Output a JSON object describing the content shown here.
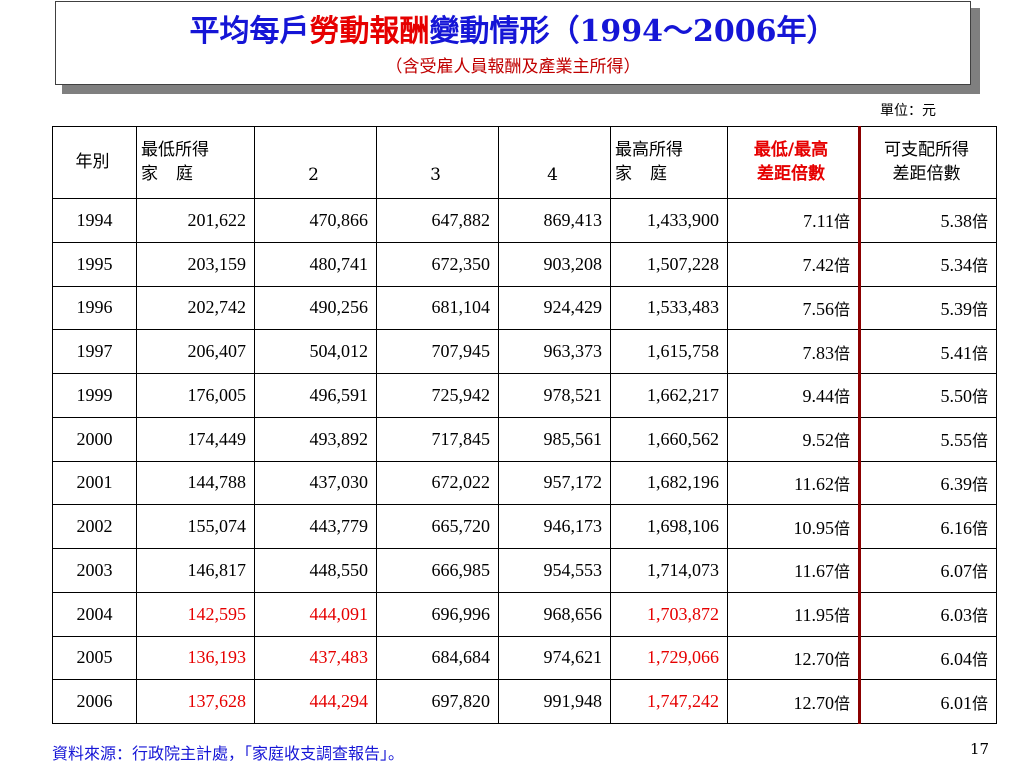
{
  "title": {
    "part1": "平均每戶",
    "accent": "勞動報酬",
    "part2": "變動情形（1994～2006年）",
    "subtitle": "（含受雇人員報酬及產業主所得）"
  },
  "unit": "單位：元",
  "table": {
    "headers": {
      "year": "年別",
      "lowest_top": "最低所得",
      "lowest_bottom": "家庭",
      "q2": "2",
      "q3": "3",
      "q4": "4",
      "highest_top": "最高所得",
      "highest_bottom": "家庭",
      "ratio_top": "最低/最高",
      "ratio_bottom": "差距倍數",
      "disp_top": "可支配所得",
      "disp_bottom": "差距倍數"
    },
    "rows": [
      {
        "year": "1994",
        "lowest": "201,622",
        "q2": "470,866",
        "q3": "647,882",
        "q4": "869,413",
        "highest": "1,433,900",
        "ratio": "7.11",
        "disp": "5.38"
      },
      {
        "year": "1995",
        "lowest": "203,159",
        "q2": "480,741",
        "q3": "672,350",
        "q4": "903,208",
        "highest": "1,507,228",
        "ratio": "7.42",
        "disp": "5.34"
      },
      {
        "year": "1996",
        "lowest": "202,742",
        "q2": "490,256",
        "q3": "681,104",
        "q4": "924,429",
        "highest": "1,533,483",
        "ratio": "7.56",
        "disp": "5.39"
      },
      {
        "year": "1997",
        "lowest": "206,407",
        "q2": "504,012",
        "q3": "707,945",
        "q4": "963,373",
        "highest": "1,615,758",
        "ratio": "7.83",
        "disp": "5.41"
      },
      {
        "year": "1999",
        "lowest": "176,005",
        "q2": "496,591",
        "q3": "725,942",
        "q4": "978,521",
        "highest": "1,662,217",
        "ratio": "9.44",
        "disp": "5.50"
      },
      {
        "year": "2000",
        "lowest": "174,449",
        "q2": "493,892",
        "q3": "717,845",
        "q4": "985,561",
        "highest": "1,660,562",
        "ratio": "9.52",
        "disp": "5.55"
      },
      {
        "year": "2001",
        "lowest": "144,788",
        "q2": "437,030",
        "q3": "672,022",
        "q4": "957,172",
        "highest": "1,682,196",
        "ratio": "11.62",
        "disp": "6.39"
      },
      {
        "year": "2002",
        "lowest": "155,074",
        "q2": "443,779",
        "q3": "665,720",
        "q4": "946,173",
        "highest": "1,698,106",
        "ratio": "10.95",
        "disp": "6.16"
      },
      {
        "year": "2003",
        "lowest": "146,817",
        "q2": "448,550",
        "q3": "666,985",
        "q4": "954,553",
        "highest": "1,714,073",
        "ratio": "11.67",
        "disp": "6.07"
      },
      {
        "year": "2004",
        "lowest": "142,595",
        "q2": "444,091",
        "q3": "696,996",
        "q4": "968,656",
        "highest": "1,703,872",
        "ratio": "11.95",
        "disp": "6.03",
        "red": [
          "lowest",
          "q2",
          "highest"
        ]
      },
      {
        "year": "2005",
        "lowest": "136,193",
        "q2": "437,483",
        "q3": "684,684",
        "q4": "974,621",
        "highest": "1,729,066",
        "ratio": "12.70",
        "disp": "6.04",
        "red": [
          "lowest",
          "q2",
          "highest"
        ]
      },
      {
        "year": "2006",
        "lowest": "137,628",
        "q2": "444,294",
        "q3": "697,820",
        "q4": "991,948",
        "highest": "1,747,242",
        "ratio": "12.70",
        "disp": "6.01",
        "red": [
          "lowest",
          "q2",
          "highest"
        ]
      }
    ],
    "ratio_suffix": "倍"
  },
  "source": "資料來源：行政院主計處，「家庭收支調查報告」。",
  "page_number": "17",
  "colors": {
    "title_blue": "#1515d6",
    "accent_red": "#e60000",
    "separator": "#8b0000"
  }
}
